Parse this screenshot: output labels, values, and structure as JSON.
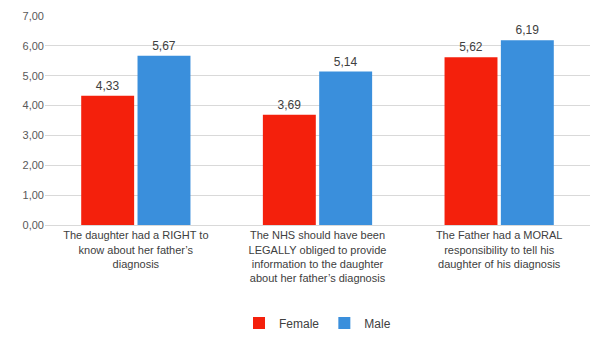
{
  "chart_data": {
    "type": "bar",
    "categories": [
      "The daughter had a RIGHT to know about her father’s diagnosis",
      "The NHS should have been LEGALLY obliged to provide information to the daughter about her father’s diagnosis",
      "The Father had a MORAL responsibility to tell his daughter of his diagnosis"
    ],
    "series": [
      {
        "name": "Female",
        "color": "#f4200c",
        "values": [
          4.33,
          3.69,
          5.62
        ],
        "value_labels": [
          "4,33",
          "3,69",
          "5,62"
        ]
      },
      {
        "name": "Male",
        "color": "#3a8fdc",
        "values": [
          5.67,
          5.14,
          6.19
        ],
        "value_labels": [
          "5,67",
          "5,14",
          "6,19"
        ]
      }
    ],
    "ylim": [
      0,
      7
    ],
    "yticks": [
      {
        "value": 0,
        "label": "0,00"
      },
      {
        "value": 1,
        "label": "1,00"
      },
      {
        "value": 2,
        "label": "2,00"
      },
      {
        "value": 3,
        "label": "3,00"
      },
      {
        "value": 4,
        "label": "4,00"
      },
      {
        "value": 5,
        "label": "5,00"
      },
      {
        "value": 6,
        "label": "6,00"
      },
      {
        "value": 7,
        "label": "7,00"
      }
    ],
    "grid": true,
    "data_labels": true,
    "legend": "bottom"
  }
}
